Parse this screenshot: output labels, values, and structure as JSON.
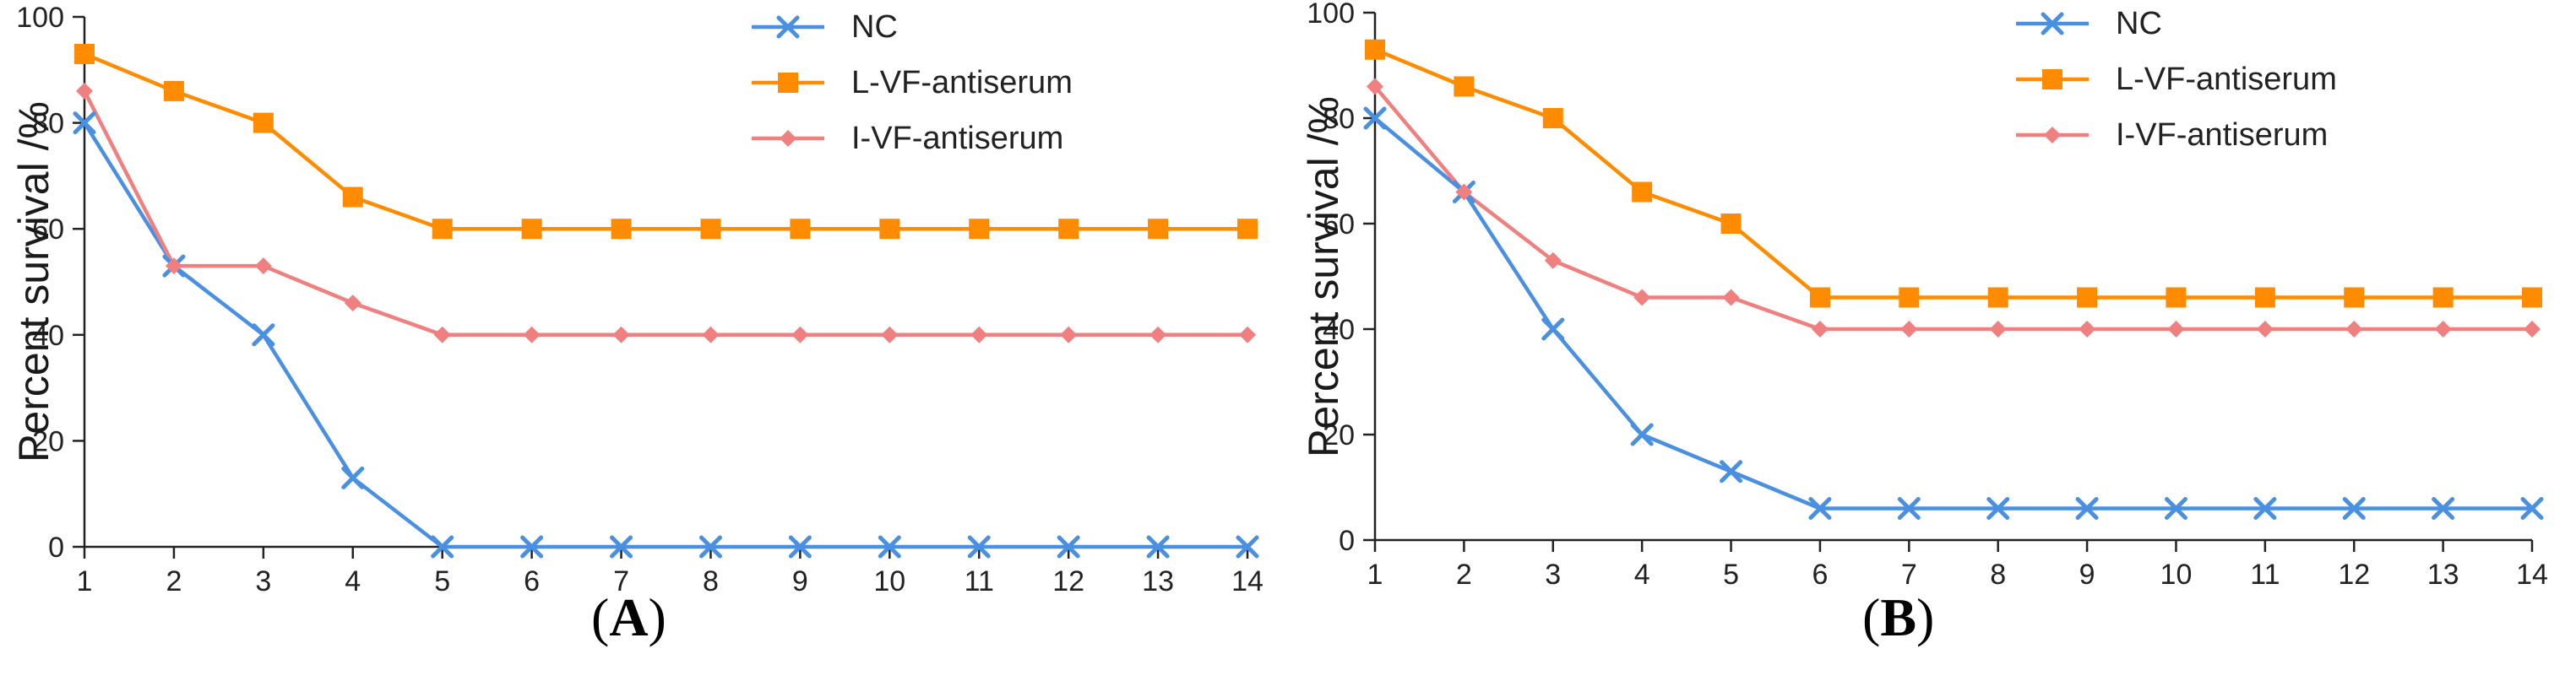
{
  "chart_data": [
    {
      "type": "line",
      "panel_label": "A",
      "ylabel": "Percent survival /%",
      "xlabel": "",
      "x": [
        1,
        2,
        3,
        4,
        5,
        6,
        7,
        8,
        9,
        10,
        11,
        12,
        13,
        14
      ],
      "ylim": [
        0,
        100
      ],
      "yticks": [
        0,
        20,
        40,
        60,
        80,
        100
      ],
      "legend_position": "top-right",
      "series": [
        {
          "name": "NC",
          "color": "#4a90e2",
          "marker": "x",
          "values": [
            80,
            53,
            40,
            13,
            0,
            0,
            0,
            0,
            0,
            0,
            0,
            0,
            0,
            0
          ]
        },
        {
          "name": "L-VF-antiserum",
          "color": "#ff8c00",
          "marker": "square",
          "values": [
            93,
            86,
            80,
            66,
            60,
            60,
            60,
            60,
            60,
            60,
            60,
            60,
            60,
            60
          ]
        },
        {
          "name": "I-VF-antiserum",
          "color": "#f08080",
          "marker": "diamond",
          "values": [
            86,
            53,
            53,
            46,
            40,
            40,
            40,
            40,
            40,
            40,
            40,
            40,
            40,
            40
          ]
        }
      ]
    },
    {
      "type": "line",
      "panel_label": "B",
      "ylabel": "Percent survival /%",
      "xlabel": "",
      "x": [
        1,
        2,
        3,
        4,
        5,
        6,
        7,
        8,
        9,
        10,
        11,
        12,
        13,
        14
      ],
      "ylim": [
        0,
        100
      ],
      "yticks": [
        0,
        20,
        40,
        60,
        80,
        100
      ],
      "legend_position": "top-right",
      "series": [
        {
          "name": "NC",
          "color": "#4a90e2",
          "marker": "x",
          "values": [
            80,
            66,
            40,
            20,
            13,
            6,
            6,
            6,
            6,
            6,
            6,
            6,
            6,
            6
          ]
        },
        {
          "name": "L-VF-antiserum",
          "color": "#ff8c00",
          "marker": "square",
          "values": [
            93,
            86,
            80,
            66,
            60,
            46,
            46,
            46,
            46,
            46,
            46,
            46,
            46,
            46
          ]
        },
        {
          "name": "I-VF-antiserum",
          "color": "#f08080",
          "marker": "diamond",
          "values": [
            86,
            66,
            53,
            46,
            46,
            40,
            40,
            40,
            40,
            40,
            40,
            40,
            40,
            40
          ]
        }
      ]
    }
  ]
}
